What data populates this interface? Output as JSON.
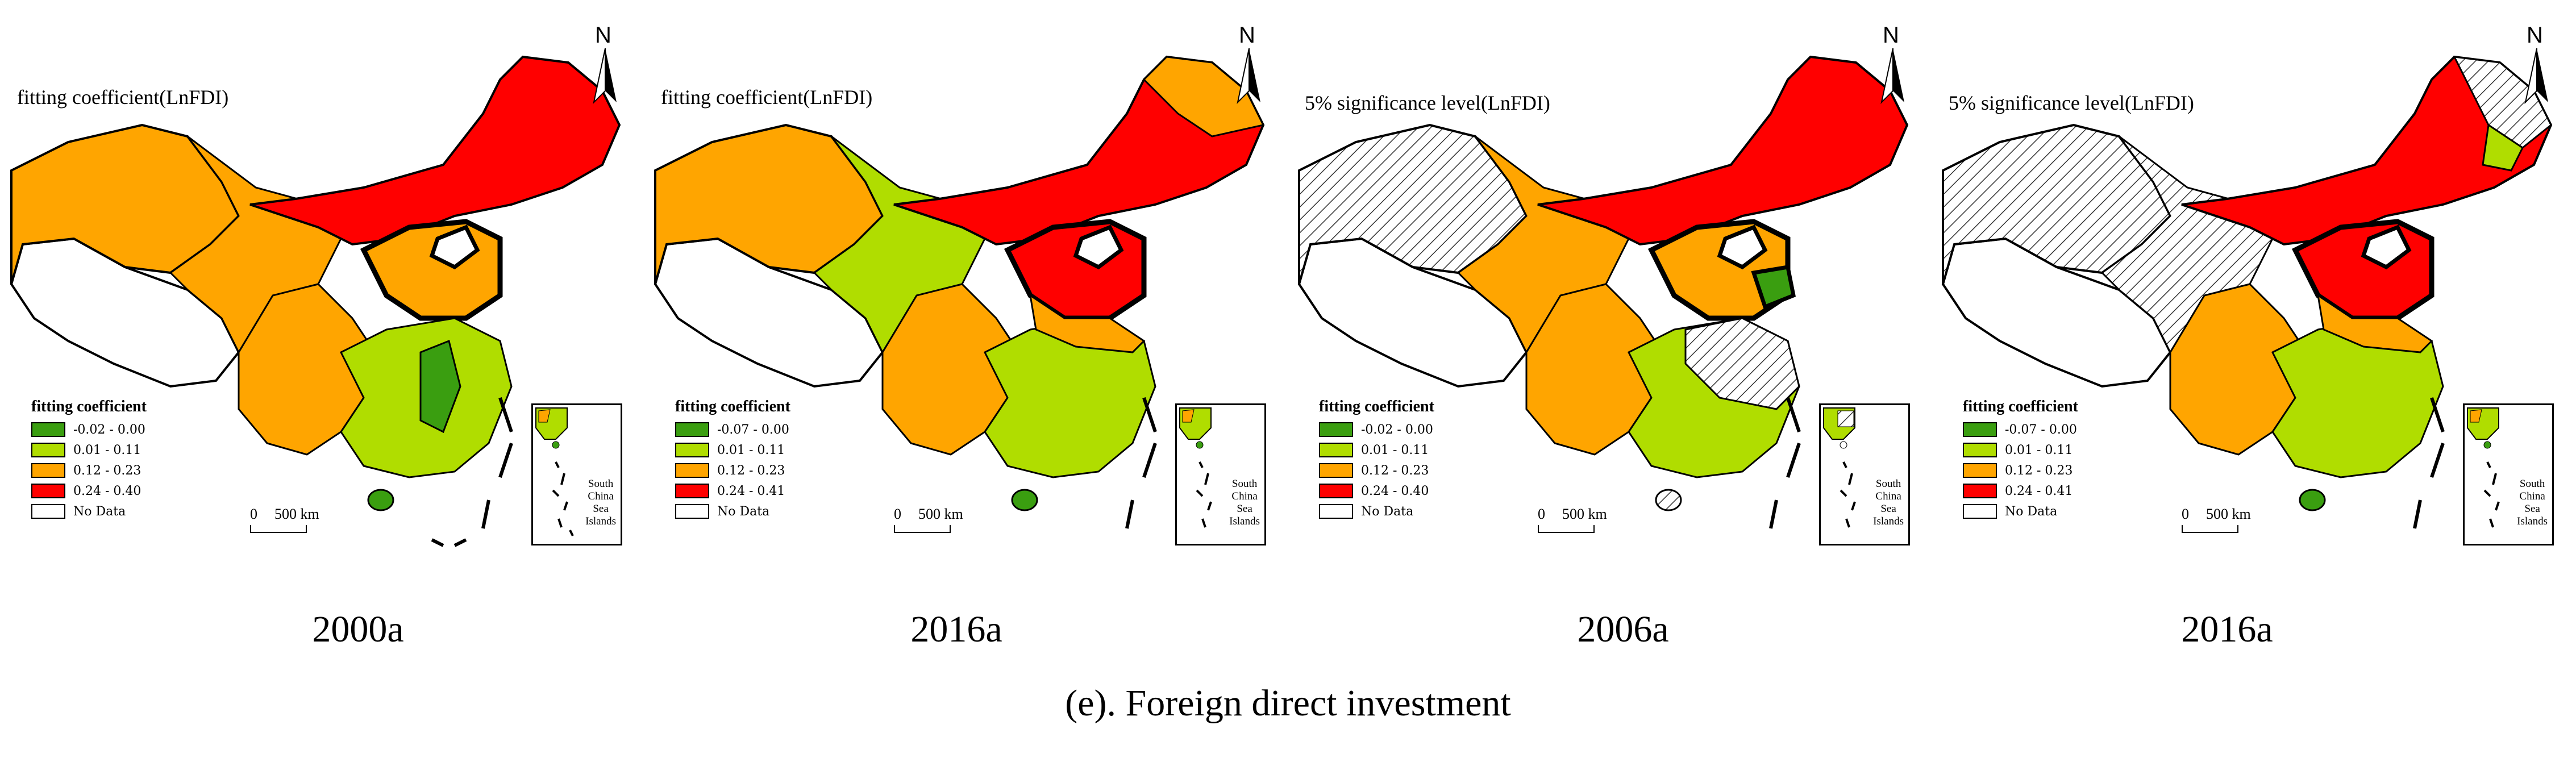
{
  "colors": {
    "class1": "#3a9e10",
    "class2": "#b0dd00",
    "class3": "#ffa500",
    "class4": "#ff0000",
    "nodata": "#ffffff",
    "hatch": "#555555"
  },
  "north_label": "N",
  "legend_title": "fitting coefficient",
  "scale_start": "0",
  "scale_end": "500 km",
  "inset_label_lines": [
    "South",
    "China",
    "Sea",
    "Islands"
  ],
  "panels": [
    {
      "title": "fitting coefficient(LnFDI)",
      "year": "2000a",
      "legend": [
        "-0.02 - 0.00",
        "0.01 - 0.11",
        "0.12 - 0.23",
        "0.24 - 0.40",
        "No Data"
      ],
      "significance_mask": false
    },
    {
      "title": "fitting coefficient(LnFDI)",
      "year": "2016a",
      "legend": [
        "-0.07 - 0.00",
        "0.01 - 0.11",
        "0.12 - 0.23",
        "0.24 - 0.41",
        "No Data"
      ],
      "significance_mask": false
    },
    {
      "title": "5% significance level(LnFDI)",
      "year": "2006a",
      "legend": [
        "-0.02 - 0.00",
        "0.01 - 0.11",
        "0.12 - 0.23",
        "0.24 - 0.40",
        "No Data"
      ],
      "significance_mask": true
    },
    {
      "title": "5% significance level(LnFDI)",
      "year": "2016a",
      "legend": [
        "-0.07 - 0.00",
        "0.01 - 0.11",
        "0.12 - 0.23",
        "0.24 - 0.41",
        "No Data"
      ],
      "significance_mask": true
    }
  ],
  "caption": "(e). Foreign direct investment"
}
